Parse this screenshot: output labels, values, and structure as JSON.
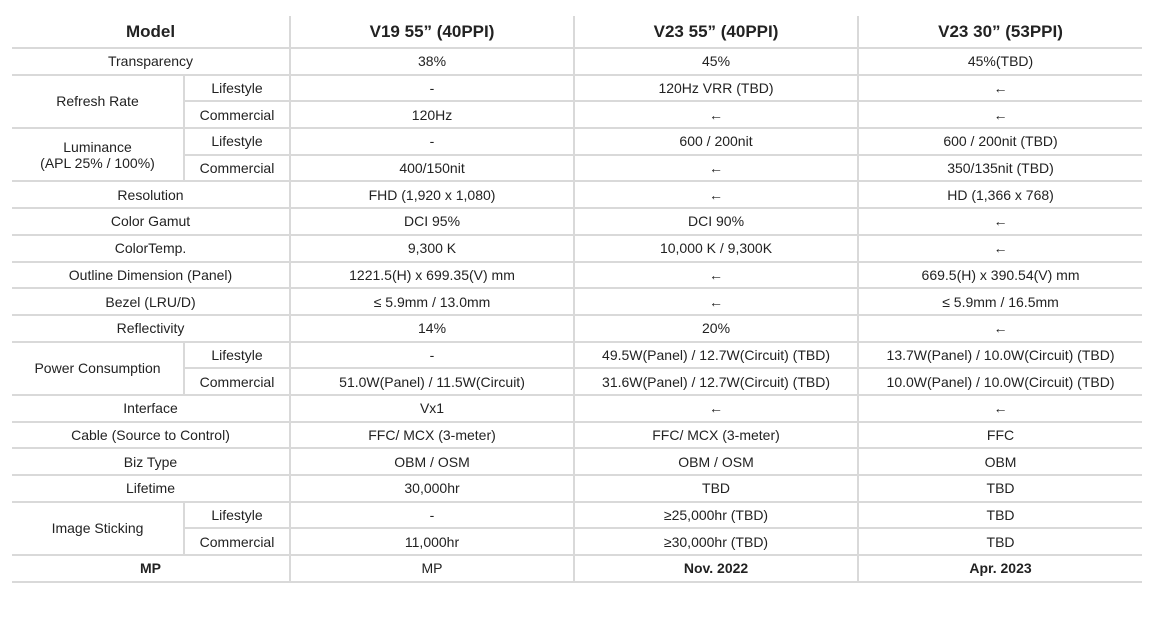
{
  "header": {
    "model": "Model",
    "col1": "V19 55” (40PPI)",
    "col2": "V23 55” (40PPI)",
    "col3": "V23 30” (53PPI)"
  },
  "sub": {
    "lifestyle": "Lifestyle",
    "commercial": "Commercial"
  },
  "rows": {
    "transparency": {
      "label": "Transparency",
      "v1": "38%",
      "v2": "45%",
      "v3": "45%(TBD)"
    },
    "refresh": {
      "label": "Refresh Rate",
      "lifestyle": {
        "v1": "-",
        "v2": "120Hz VRR (TBD)",
        "v3": "←"
      },
      "commercial": {
        "v1": "120Hz",
        "v2": "←",
        "v3": "←"
      }
    },
    "luminance": {
      "label1": "Luminance",
      "label2": "(APL 25% / 100%)",
      "lifestyle": {
        "v1": "-",
        "v2": "600 / 200nit",
        "v3": "600 / 200nit (TBD)"
      },
      "commercial": {
        "v1": "400/150nit",
        "v2": "←",
        "v3": "350/135nit (TBD)"
      }
    },
    "resolution": {
      "label": "Resolution",
      "v1": "FHD (1,920 x 1,080)",
      "v2": "←",
      "v3": "HD (1,366 x 768)"
    },
    "gamut": {
      "label": "Color Gamut",
      "v1": "DCI 95%",
      "v2": "DCI 90%",
      "v3": "←"
    },
    "colortemp": {
      "label": "ColorTemp.",
      "v1": "9,300 K",
      "v2": "10,000 K / 9,300K",
      "v3": "←"
    },
    "outline": {
      "label": "Outline Dimension (Panel)",
      "v1": "1221.5(H) x 699.35(V) mm",
      "v2": "←",
      "v3": "669.5(H) x 390.54(V) mm"
    },
    "bezel": {
      "label": "Bezel (LRU/D)",
      "v1": "≤ 5.9mm / 13.0mm",
      "v2": "←",
      "v3": "≤ 5.9mm / 16.5mm"
    },
    "reflectivity": {
      "label": "Reflectivity",
      "v1": "14%",
      "v2": "20%",
      "v3": "←"
    },
    "power": {
      "label": "Power Consumption",
      "lifestyle": {
        "v1": "-",
        "v2": "49.5W(Panel) / 12.7W(Circuit) (TBD)",
        "v3": "13.7W(Panel) / 10.0W(Circuit) (TBD)"
      },
      "commercial": {
        "v1": "51.0W(Panel) / 11.5W(Circuit)",
        "v2": "31.6W(Panel) / 12.7W(Circuit) (TBD)",
        "v3": "10.0W(Panel) / 10.0W(Circuit) (TBD)"
      }
    },
    "interface": {
      "label": "Interface",
      "v1": "Vx1",
      "v2": "←",
      "v3": "←"
    },
    "cable": {
      "label": "Cable (Source to Control)",
      "v1": "FFC/ MCX (3-meter)",
      "v2": "FFC/ MCX (3-meter)",
      "v3": "FFC"
    },
    "biz": {
      "label": "Biz Type",
      "v1": "OBM / OSM",
      "v2": "OBM / OSM",
      "v3": "OBM"
    },
    "lifetime": {
      "label": "Lifetime",
      "v1": "30,000hr",
      "v2": "TBD",
      "v3": "TBD"
    },
    "sticking": {
      "label": "Image Sticking",
      "lifestyle": {
        "v1": "-",
        "v2": "≥25,000hr (TBD)",
        "v3": "TBD"
      },
      "commercial": {
        "v1": "11,000hr",
        "v2": "≥30,000hr (TBD)",
        "v3": "TBD"
      }
    },
    "mp": {
      "label": "MP",
      "v1": "MP",
      "v2": "Nov. 2022",
      "v3": "Apr. 2023"
    }
  }
}
